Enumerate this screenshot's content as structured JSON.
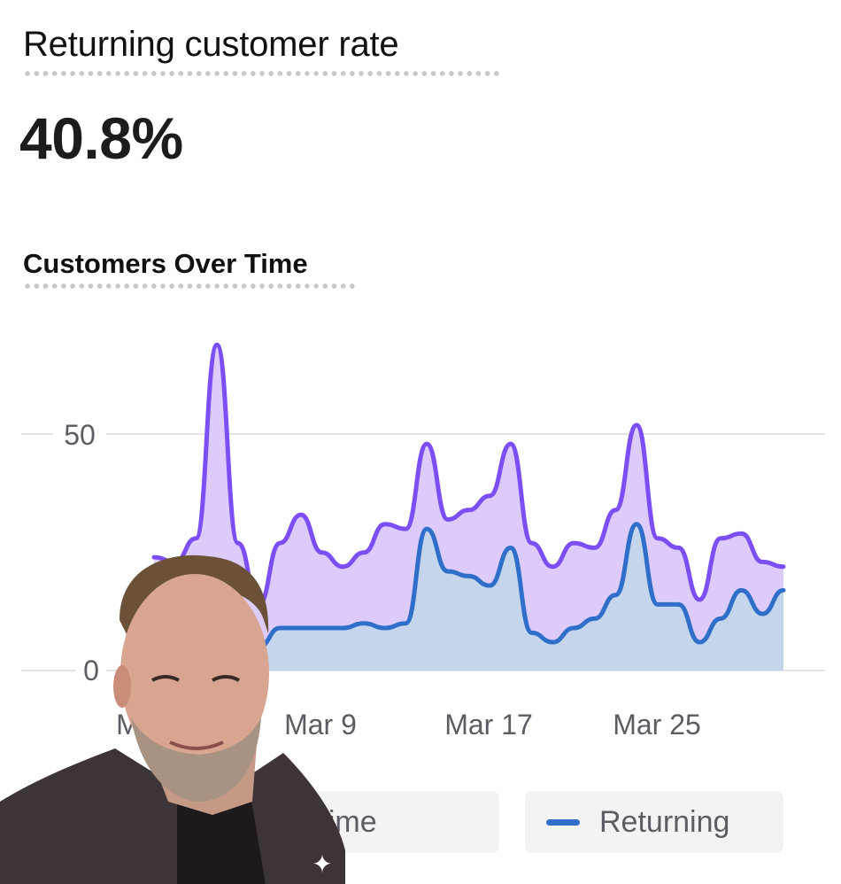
{
  "header": {
    "metric_title": "Returning customer rate",
    "metric_value": "40.8%",
    "chart_title": "Customers Over Time"
  },
  "legend": {
    "items": [
      {
        "label": "First-time",
        "visible_label": "rst-time",
        "color": "#7B4FF5"
      },
      {
        "label": "Returning",
        "color": "#2F6FC9"
      }
    ]
  },
  "axis": {
    "y_ticks": [
      "50",
      "0"
    ],
    "x_ticks": [
      "Mar 1",
      "Mar 9",
      "Mar 17",
      "Mar 25"
    ]
  },
  "overlay": {
    "sparkle_icon": "✦"
  },
  "colors": {
    "first_time_line": "#7B4FF5",
    "first_time_fill": "#DCCBFB",
    "returning_line": "#2F6FC9",
    "returning_fill": "#C4D5EC",
    "grid": "#e4e4e4",
    "axis_text": "#5b5d63"
  },
  "chart_data": {
    "type": "area",
    "title": "Customers Over Time",
    "xlabel": "",
    "ylabel": "",
    "ylim": [
      0,
      70
    ],
    "y_ticks": [
      0,
      50
    ],
    "grid": true,
    "legend_position": "bottom",
    "stacked": true,
    "x": [
      "Mar 1",
      "Mar 2",
      "Mar 3",
      "Mar 4",
      "Mar 5",
      "Mar 6",
      "Mar 7",
      "Mar 8",
      "Mar 9",
      "Mar 10",
      "Mar 11",
      "Mar 12",
      "Mar 13",
      "Mar 14",
      "Mar 15",
      "Mar 16",
      "Mar 17",
      "Mar 18",
      "Mar 19",
      "Mar 20",
      "Mar 21",
      "Mar 22",
      "Mar 23",
      "Mar 24",
      "Mar 25",
      "Mar 26",
      "Mar 27",
      "Mar 28",
      "Mar 29",
      "Mar 30",
      "Mar 31"
    ],
    "series": [
      {
        "name": "Returning",
        "values": [
          6,
          5,
          6,
          7,
          6,
          5,
          9,
          9,
          9,
          9,
          10,
          9,
          10,
          30,
          21,
          20,
          18,
          26,
          8,
          6,
          9,
          11,
          16,
          31,
          14,
          14,
          6,
          11,
          17,
          12,
          17
        ]
      },
      {
        "name": "First-time",
        "values": [
          18,
          18,
          22,
          62,
          21,
          9,
          18,
          24,
          16,
          13,
          15,
          22,
          20,
          18,
          11,
          14,
          19,
          22,
          19,
          16,
          18,
          15,
          18,
          21,
          14,
          12,
          9,
          17,
          12,
          11,
          5
        ]
      }
    ],
    "totals": [
      24,
      23,
      28,
      69,
      27,
      14,
      27,
      33,
      25,
      22,
      25,
      31,
      30,
      48,
      32,
      34,
      37,
      48,
      27,
      22,
      27,
      26,
      34,
      52,
      28,
      26,
      15,
      28,
      29,
      23,
      22
    ]
  }
}
